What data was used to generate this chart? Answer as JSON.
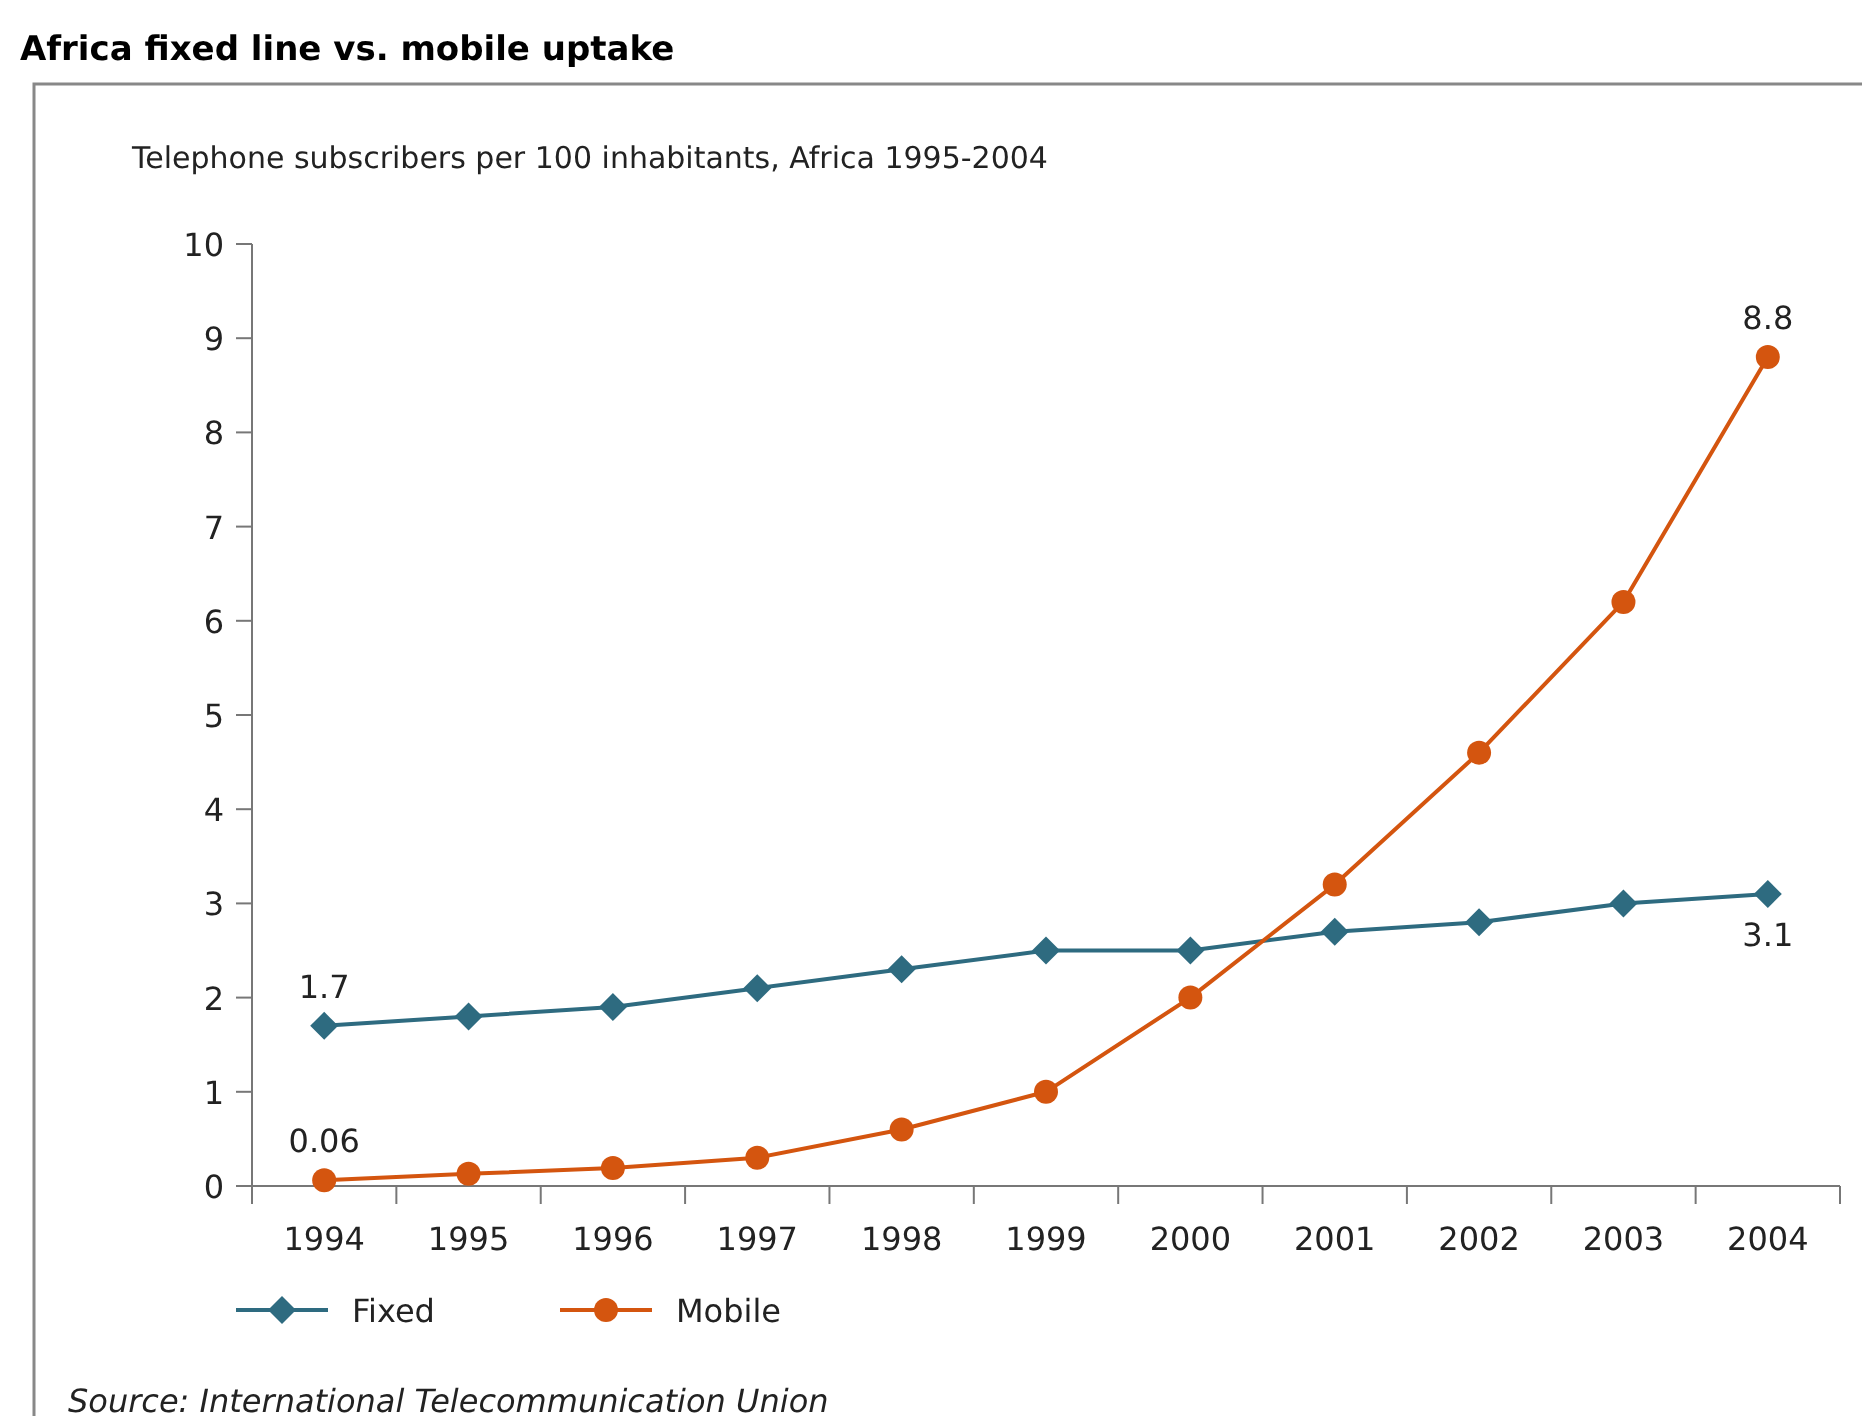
{
  "chart_data": {
    "type": "line",
    "title": "Africa fixed line vs. mobile uptake",
    "subtitle": "Telephone subscribers per 100 inhabitants, Africa 1995-2004",
    "categories": [
      "1994",
      "1995",
      "1996",
      "1997",
      "1998",
      "1999",
      "2000",
      "2001",
      "2002",
      "2003",
      "2004"
    ],
    "series": [
      {
        "name": "Fixed",
        "color": "#2e6b80",
        "marker": "diamond",
        "values": [
          1.7,
          1.8,
          1.9,
          2.1,
          2.3,
          2.5,
          2.5,
          2.7,
          2.8,
          3.0,
          3.1
        ],
        "value_labels": [
          "1.7",
          null,
          null,
          null,
          null,
          null,
          null,
          null,
          null,
          null,
          "3.1"
        ]
      },
      {
        "name": "Mobile",
        "color": "#d4550f",
        "marker": "circle",
        "values": [
          0.06,
          0.13,
          0.19,
          0.3,
          0.6,
          1.0,
          2.0,
          3.2,
          4.6,
          6.2,
          8.8
        ],
        "value_labels": [
          "0.06",
          null,
          null,
          null,
          null,
          null,
          null,
          null,
          null,
          null,
          "8.8"
        ]
      }
    ],
    "ylim": [
      0,
      10
    ],
    "yticks": [
      0,
      1,
      2,
      3,
      4,
      5,
      6,
      7,
      8,
      9,
      10
    ],
    "grid": false,
    "legend": "bottom left",
    "annotations": [
      "Source: International Telecommunication Union"
    ]
  }
}
